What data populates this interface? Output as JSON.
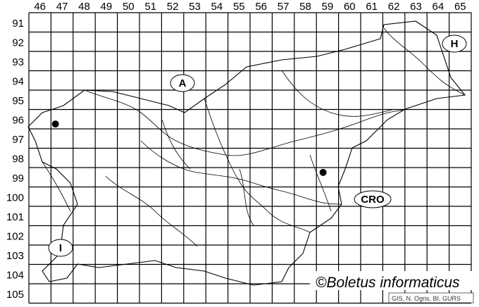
{
  "map": {
    "columns": [
      "46",
      "47",
      "48",
      "49",
      "50",
      "51",
      "52",
      "53",
      "54",
      "55",
      "56",
      "57",
      "58",
      "59",
      "60",
      "61",
      "62",
      "63",
      "64",
      "65"
    ],
    "rows": [
      "91",
      "92",
      "93",
      "94",
      "95",
      "96",
      "97",
      "98",
      "99",
      "100",
      "101",
      "102",
      "103",
      "104",
      "105"
    ],
    "records": [
      {
        "col": "47",
        "row": "96"
      },
      {
        "col": "59",
        "row": "99"
      }
    ],
    "country_labels": [
      {
        "id": "austria",
        "text": "A"
      },
      {
        "id": "hungary",
        "text": "H"
      },
      {
        "id": "croatia",
        "text": "CRO"
      },
      {
        "id": "italy",
        "text": "I"
      }
    ],
    "copyright": "©Boletus informaticus",
    "credit": "GIS, N. Ogris, BI, GURS",
    "colors": {
      "grid": "#000000",
      "record_dot": "#000000",
      "background": "#ffffff"
    }
  }
}
